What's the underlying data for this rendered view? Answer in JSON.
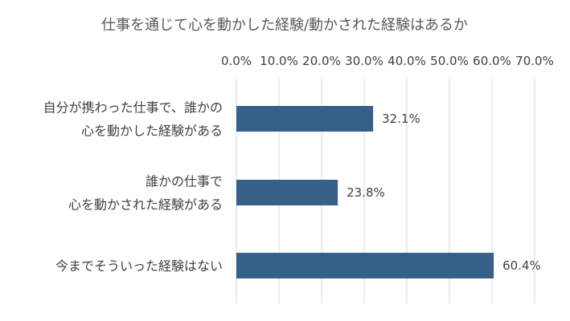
{
  "chart_data": {
    "type": "bar",
    "orientation": "horizontal",
    "title": "仕事を通じて心を動かした経験/動かされた経験はあるか",
    "xlim": [
      0,
      70
    ],
    "x_ticks": [
      "0.0%",
      "10.0%",
      "20.0%",
      "30.0%",
      "40.0%",
      "50.0%",
      "60.0%",
      "70.0%"
    ],
    "x_axis_position": "top",
    "grid": true,
    "categories": [
      [
        "自分が携わった仕事で、誰かの",
        "心を動かした経験がある"
      ],
      [
        "誰かの仕事で",
        "心を動かされた経験がある"
      ],
      [
        "今までそういった経験はない"
      ]
    ],
    "values": [
      32.1,
      23.8,
      60.4
    ],
    "data_labels": [
      "32.1%",
      "23.8%",
      "60.4%"
    ],
    "bar_color": "#376088"
  }
}
